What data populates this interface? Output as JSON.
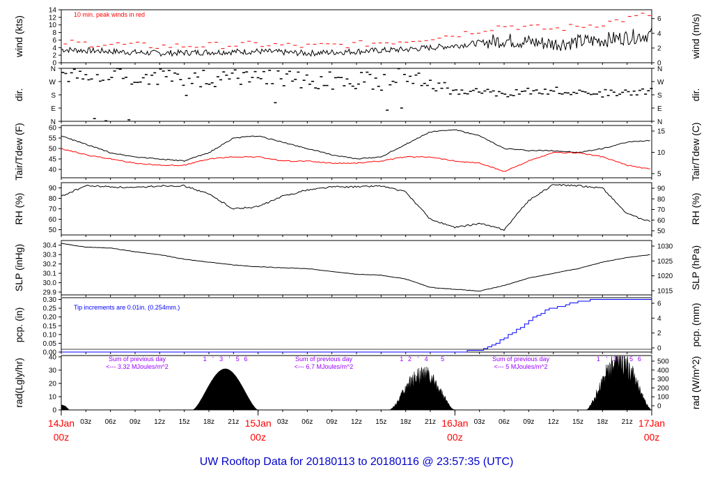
{
  "title": "UW Rooftop Data for 20180113  to  20180116 @ 23:57:35  (UTC)",
  "hour_labels": [
    "03z",
    "06z",
    "09z",
    "12z",
    "15z",
    "18z",
    "21z"
  ],
  "day_labels": [
    {
      "day": "14Jan",
      "hour": "00z"
    },
    {
      "day": "15Jan",
      "hour": "00z"
    },
    {
      "day": "16Jan",
      "hour": "00z"
    },
    {
      "day": "17Jan",
      "hour": "00z"
    }
  ],
  "colors": {
    "axis": "#000000",
    "red": "#ff0000",
    "blue": "#0000ff",
    "purple": "#9900ff",
    "title": "#0000cc"
  },
  "chart_data": [
    {
      "type": "line",
      "name": "wind",
      "ylabel": "wind (kts)",
      "ylabel_right": "wind (m/s)",
      "ylim": [
        0,
        14
      ],
      "yticks": [
        "0",
        "2",
        "4",
        "6",
        "8",
        "10",
        "12",
        "14"
      ],
      "right_ylim": [
        0,
        7.2
      ],
      "right_yticks": [
        "0",
        "2",
        "4",
        "6"
      ],
      "annotation": "10 min. peak winds in red",
      "x_hours": [
        0,
        6,
        12,
        18,
        24,
        30,
        36,
        42,
        48,
        54,
        60,
        66,
        72
      ],
      "series": [
        {
          "name": "wind",
          "values": [
            3.5,
            3.0,
            2.5,
            2.8,
            3.0,
            2.5,
            3.0,
            3.5,
            4.5,
            6.0,
            5.0,
            6.0,
            7.5
          ]
        },
        {
          "name": "peak",
          "values": [
            5.0,
            4.5,
            4.0,
            4.2,
            4.5,
            4.0,
            4.5,
            5.5,
            7.0,
            9.5,
            8.5,
            10.0,
            12.5
          ]
        }
      ]
    },
    {
      "type": "scatter",
      "name": "dir",
      "ylabel": "dir.",
      "ylabel_right": "dir.",
      "yticks": [
        "N",
        "E",
        "S",
        "W",
        "N"
      ],
      "ylim": [
        0,
        360
      ],
      "x_hours": [
        0,
        6,
        12,
        18,
        24,
        30,
        36,
        42,
        48,
        54,
        60,
        66,
        72
      ],
      "series": [
        {
          "name": "direction_deg",
          "values": [
            330,
            320,
            300,
            290,
            290,
            280,
            270,
            290,
            210,
            190,
            210,
            190,
            200
          ]
        }
      ]
    },
    {
      "type": "line",
      "name": "temp",
      "ylabel": "Tair/Tdew (F)",
      "ylabel_right": "Tair/Tdew (C)",
      "ylim": [
        36,
        61
      ],
      "yticks": [
        "40",
        "45",
        "50",
        "55",
        "60"
      ],
      "right_yticks": [
        "5",
        "10",
        "15"
      ],
      "x_hours": [
        0,
        3,
        6,
        9,
        12,
        15,
        18,
        21,
        24,
        27,
        30,
        33,
        36,
        39,
        42,
        45,
        48,
        51,
        54,
        57,
        60,
        63,
        66,
        69,
        72
      ],
      "series": [
        {
          "name": "Tair",
          "values": [
            56,
            52,
            48,
            46,
            45,
            44,
            48,
            55,
            56,
            53,
            50,
            47,
            45,
            46,
            52,
            58,
            59,
            56,
            50,
            49,
            49,
            48,
            50,
            53,
            54
          ]
        },
        {
          "name": "Tdew",
          "values": [
            50,
            47,
            45,
            43,
            42,
            42,
            45,
            46,
            46,
            44,
            44,
            43,
            43,
            44,
            46,
            46,
            44,
            43,
            39,
            44,
            48,
            48,
            46,
            42,
            40
          ]
        }
      ]
    },
    {
      "type": "line",
      "name": "rh",
      "ylabel": "RH (%)",
      "ylabel_right": "RH (%)",
      "ylim": [
        45,
        95
      ],
      "yticks": [
        "50",
        "60",
        "70",
        "80",
        "90"
      ],
      "right_yticks": [
        "50",
        "60",
        "70",
        "80",
        "90"
      ],
      "x_hours": [
        0,
        3,
        6,
        9,
        12,
        15,
        18,
        21,
        24,
        27,
        30,
        33,
        36,
        39,
        42,
        45,
        48,
        51,
        54,
        57,
        60,
        63,
        66,
        69,
        72
      ],
      "series": [
        {
          "name": "RH",
          "values": [
            82,
            92,
            91,
            90,
            92,
            92,
            84,
            70,
            72,
            82,
            88,
            91,
            91,
            92,
            86,
            60,
            52,
            56,
            50,
            78,
            93,
            92,
            90,
            65,
            57
          ]
        }
      ]
    },
    {
      "type": "line",
      "name": "slp",
      "ylabel": "SLP (inHg)",
      "ylabel_right": "SLP (hPa)",
      "ylim": [
        29.87,
        30.45
      ],
      "yticks": [
        "29.9",
        "30.0",
        "30.1",
        "30.2",
        "30.3",
        "30.4"
      ],
      "right_yticks": [
        "1015",
        "1020",
        "1025",
        "1030"
      ],
      "x_hours": [
        0,
        3,
        6,
        9,
        12,
        15,
        18,
        21,
        24,
        27,
        30,
        33,
        36,
        39,
        42,
        45,
        48,
        51,
        54,
        57,
        60,
        63,
        66,
        69,
        72
      ],
      "series": [
        {
          "name": "SLP",
          "values": [
            30.42,
            30.38,
            30.37,
            30.33,
            30.3,
            30.25,
            30.22,
            30.19,
            30.17,
            30.16,
            30.15,
            30.12,
            30.09,
            30.08,
            30.04,
            29.95,
            29.93,
            29.91,
            29.97,
            30.05,
            30.1,
            30.15,
            30.22,
            30.27,
            30.3
          ]
        }
      ]
    },
    {
      "type": "line",
      "name": "pcp",
      "ylabel": "pcp. (in)",
      "ylabel_right": "pcp. (mm)",
      "ylim": [
        0,
        0.31
      ],
      "yticks": [
        "0.00",
        "0.05",
        "0.10",
        "0.15",
        "0.20",
        "0.25",
        "0.30"
      ],
      "right_yticks": [
        "0",
        "2",
        "4",
        "6"
      ],
      "annotation": "Tip increments are 0.01in. (0.254mm.)",
      "x_hours": [
        0,
        48,
        51,
        53,
        55,
        57,
        59,
        61,
        63,
        66,
        72
      ],
      "series": [
        {
          "name": "precip",
          "values": [
            0,
            0,
            0.01,
            0.05,
            0.11,
            0.18,
            0.24,
            0.26,
            0.29,
            0.3,
            0.3
          ]
        }
      ]
    },
    {
      "type": "area",
      "name": "rad",
      "ylabel": "rad(Lgly/hr)",
      "ylabel_right": "rad (W/m^2)",
      "ylim": [
        0,
        41
      ],
      "yticks": [
        "0",
        "10",
        "20",
        "30",
        "40"
      ],
      "right_yticks": [
        "0",
        "100",
        "200",
        "300",
        "400",
        "500"
      ],
      "day_peaks": [
        {
          "start_hour": 16,
          "end_hour": 24,
          "peak": 31
        },
        {
          "start_hour": 40,
          "end_hour": 48,
          "peak": 34
        },
        {
          "start_hour": 64,
          "end_hour": 72,
          "peak": 47
        }
      ],
      "day_notes": [
        {
          "line1": "Sum of previous day",
          "line2": "<--- 3.32 MJoules/m^2"
        },
        {
          "line1": "Sum of previous day",
          "line2": "<--- 6.7 MJoules/m^2"
        },
        {
          "line1": "Sum of previous day",
          "line2": "<--- 5 MJoules/m^2"
        }
      ],
      "marks": [
        {
          "hour": 17.5,
          "label": "1"
        },
        {
          "hour": 18.5,
          "label": "'"
        },
        {
          "hour": 19.5,
          "label": "3"
        },
        {
          "hour": 20.5,
          "label": "'"
        },
        {
          "hour": 21.5,
          "label": "5"
        },
        {
          "hour": 22.5,
          "label": "6"
        },
        {
          "hour": 41.5,
          "label": "1"
        },
        {
          "hour": 42.5,
          "label": "2"
        },
        {
          "hour": 43.5,
          "label": "'"
        },
        {
          "hour": 44.5,
          "label": "4"
        },
        {
          "hour": 46.5,
          "label": "5"
        },
        {
          "hour": 65.5,
          "label": "1"
        },
        {
          "hour": 66.5,
          "label": "'"
        },
        {
          "hour": 67.5,
          "label": "3"
        },
        {
          "hour": 68.5,
          "label": "'"
        },
        {
          "hour": 69.5,
          "label": "5"
        },
        {
          "hour": 70.5,
          "label": "6"
        }
      ]
    }
  ]
}
